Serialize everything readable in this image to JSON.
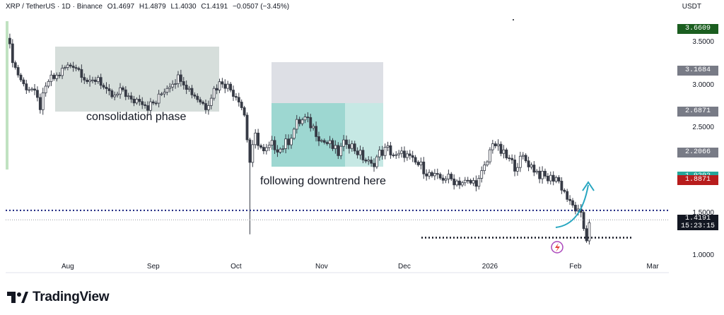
{
  "header": {
    "symbol": "XRP / TetherUS · 1D · Binance",
    "open": "O1.4697",
    "high": "H1.4879",
    "low": "L1.4030",
    "close": "C1.4191",
    "change": "−0.0507 (−3.45%)"
  },
  "currency": "USDT",
  "annotations": {
    "consolidation": "consolidation phase",
    "downtrend": "following downtrend here"
  },
  "price_tags": [
    {
      "label": "3.6609",
      "color": "#1b5e20",
      "price": 3.6609
    },
    {
      "label": "3.1684",
      "color": "#787b86",
      "price": 3.1684
    },
    {
      "label": "2.6871",
      "color": "#787b86",
      "price": 2.6871
    },
    {
      "label": "2.2066",
      "color": "#787b86",
      "price": 2.2066
    },
    {
      "label": "1.9292",
      "color": "#26a69a",
      "price": 1.9292
    },
    {
      "label": "1.8871",
      "color": "#b71c1c",
      "price": 1.8871
    }
  ],
  "current_price": {
    "label": "1.4191",
    "countdown": "15:23:15",
    "price": 1.4191
  },
  "logo": {
    "text": "TradingView"
  },
  "chart_data": {
    "type": "candlestick",
    "ylim": [
      0.8,
      3.75
    ],
    "y_ticks": [
      "3.5000",
      "3.0000",
      "2.5000",
      "1.5000",
      "1.0000"
    ],
    "y_tick_values": [
      3.5,
      3.0,
      2.5,
      1.5,
      1.0
    ],
    "x_ticks": [
      "Aug",
      "Sep",
      "Oct",
      "Nov",
      "Dec",
      "2026",
      "Feb",
      "Mar"
    ],
    "x_tick_days": [
      22,
      53,
      83,
      114,
      144,
      175,
      206,
      234
    ],
    "days_total": 246,
    "close_path": [
      [
        0,
        3.55
      ],
      [
        3,
        3.2
      ],
      [
        6,
        3.0
      ],
      [
        9,
        2.95
      ],
      [
        12,
        2.75
      ],
      [
        15,
        3.05
      ],
      [
        18,
        3.1
      ],
      [
        21,
        3.2
      ],
      [
        24,
        3.25
      ],
      [
        27,
        3.15
      ],
      [
        30,
        3.0
      ],
      [
        33,
        3.1
      ],
      [
        36,
        2.9
      ],
      [
        39,
        2.85
      ],
      [
        42,
        2.95
      ],
      [
        45,
        2.8
      ],
      [
        48,
        2.85
      ],
      [
        51,
        2.75
      ],
      [
        54,
        2.8
      ],
      [
        57,
        2.95
      ],
      [
        60,
        3.05
      ],
      [
        63,
        3.1
      ],
      [
        66,
        2.95
      ],
      [
        69,
        2.85
      ],
      [
        72,
        2.75
      ],
      [
        75,
        2.95
      ],
      [
        78,
        3.05
      ],
      [
        81,
        2.95
      ],
      [
        84,
        2.85
      ],
      [
        86,
        2.65
      ],
      [
        88,
        2.1
      ],
      [
        90,
        2.4
      ],
      [
        93,
        2.2
      ],
      [
        96,
        2.3
      ],
      [
        99,
        2.25
      ],
      [
        102,
        2.35
      ],
      [
        105,
        2.55
      ],
      [
        108,
        2.6
      ],
      [
        111,
        2.5
      ],
      [
        114,
        2.35
      ],
      [
        117,
        2.3
      ],
      [
        120,
        2.2
      ],
      [
        123,
        2.35
      ],
      [
        126,
        2.25
      ],
      [
        129,
        2.15
      ],
      [
        132,
        2.05
      ],
      [
        135,
        2.2
      ],
      [
        138,
        2.25
      ],
      [
        141,
        2.15
      ],
      [
        144,
        2.2
      ],
      [
        147,
        2.1
      ],
      [
        150,
        2.05
      ],
      [
        153,
        1.95
      ],
      [
        156,
        1.9
      ],
      [
        159,
        1.92
      ],
      [
        162,
        1.88
      ],
      [
        165,
        1.86
      ],
      [
        168,
        1.85
      ],
      [
        171,
        1.88
      ],
      [
        174,
        2.1
      ],
      [
        176,
        2.35
      ],
      [
        178,
        2.25
      ],
      [
        181,
        2.15
      ],
      [
        184,
        2.05
      ],
      [
        187,
        2.15
      ],
      [
        190,
        2.05
      ],
      [
        193,
        1.95
      ],
      [
        196,
        1.9
      ],
      [
        199,
        1.92
      ],
      [
        202,
        1.75
      ],
      [
        204,
        1.6
      ],
      [
        206,
        1.55
      ],
      [
        208,
        1.45
      ],
      [
        210,
        1.2
      ],
      [
        211,
        1.42
      ]
    ],
    "levels": [
      {
        "name": "resistance",
        "price": 1.53
      },
      {
        "name": "support",
        "price": 1.21
      }
    ]
  }
}
